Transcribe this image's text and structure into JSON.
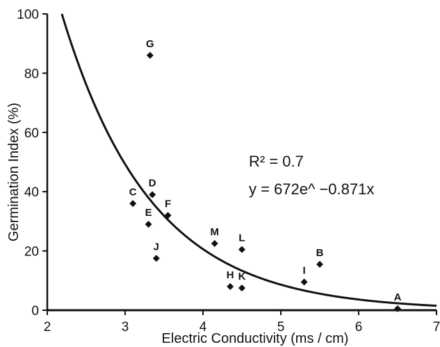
{
  "chart_data": {
    "type": "scatter",
    "title": "",
    "xlabel": "Electric Conductivity (ms / cm)",
    "ylabel": "Germination Index (%)",
    "xlim": [
      2,
      7
    ],
    "ylim": [
      0,
      100
    ],
    "xticks": [
      "2",
      "3",
      "4",
      "5",
      "6",
      "7"
    ],
    "yticks": [
      "0",
      "20",
      "40",
      "60",
      "80",
      "100"
    ],
    "grid": false,
    "points": [
      {
        "label": "A",
        "x": 6.5,
        "y": 0.5
      },
      {
        "label": "B",
        "x": 5.5,
        "y": 15.5
      },
      {
        "label": "C",
        "x": 3.1,
        "y": 36
      },
      {
        "label": "D",
        "x": 3.35,
        "y": 39
      },
      {
        "label": "E",
        "x": 3.3,
        "y": 29
      },
      {
        "label": "F",
        "x": 3.55,
        "y": 32
      },
      {
        "label": "G",
        "x": 3.32,
        "y": 86
      },
      {
        "label": "H",
        "x": 4.35,
        "y": 8
      },
      {
        "label": "I",
        "x": 5.3,
        "y": 9.5
      },
      {
        "label": "J",
        "x": 3.4,
        "y": 17.5
      },
      {
        "label": "K",
        "x": 4.5,
        "y": 7.5
      },
      {
        "label": "L",
        "x": 4.5,
        "y": 20.5
      },
      {
        "label": "M",
        "x": 4.15,
        "y": 22.5
      }
    ],
    "trendline": {
      "a": 672,
      "b": -0.871
    },
    "annotations": {
      "r2": "R² = 0.7",
      "equation": "y = 672e^ −0.871x"
    }
  }
}
